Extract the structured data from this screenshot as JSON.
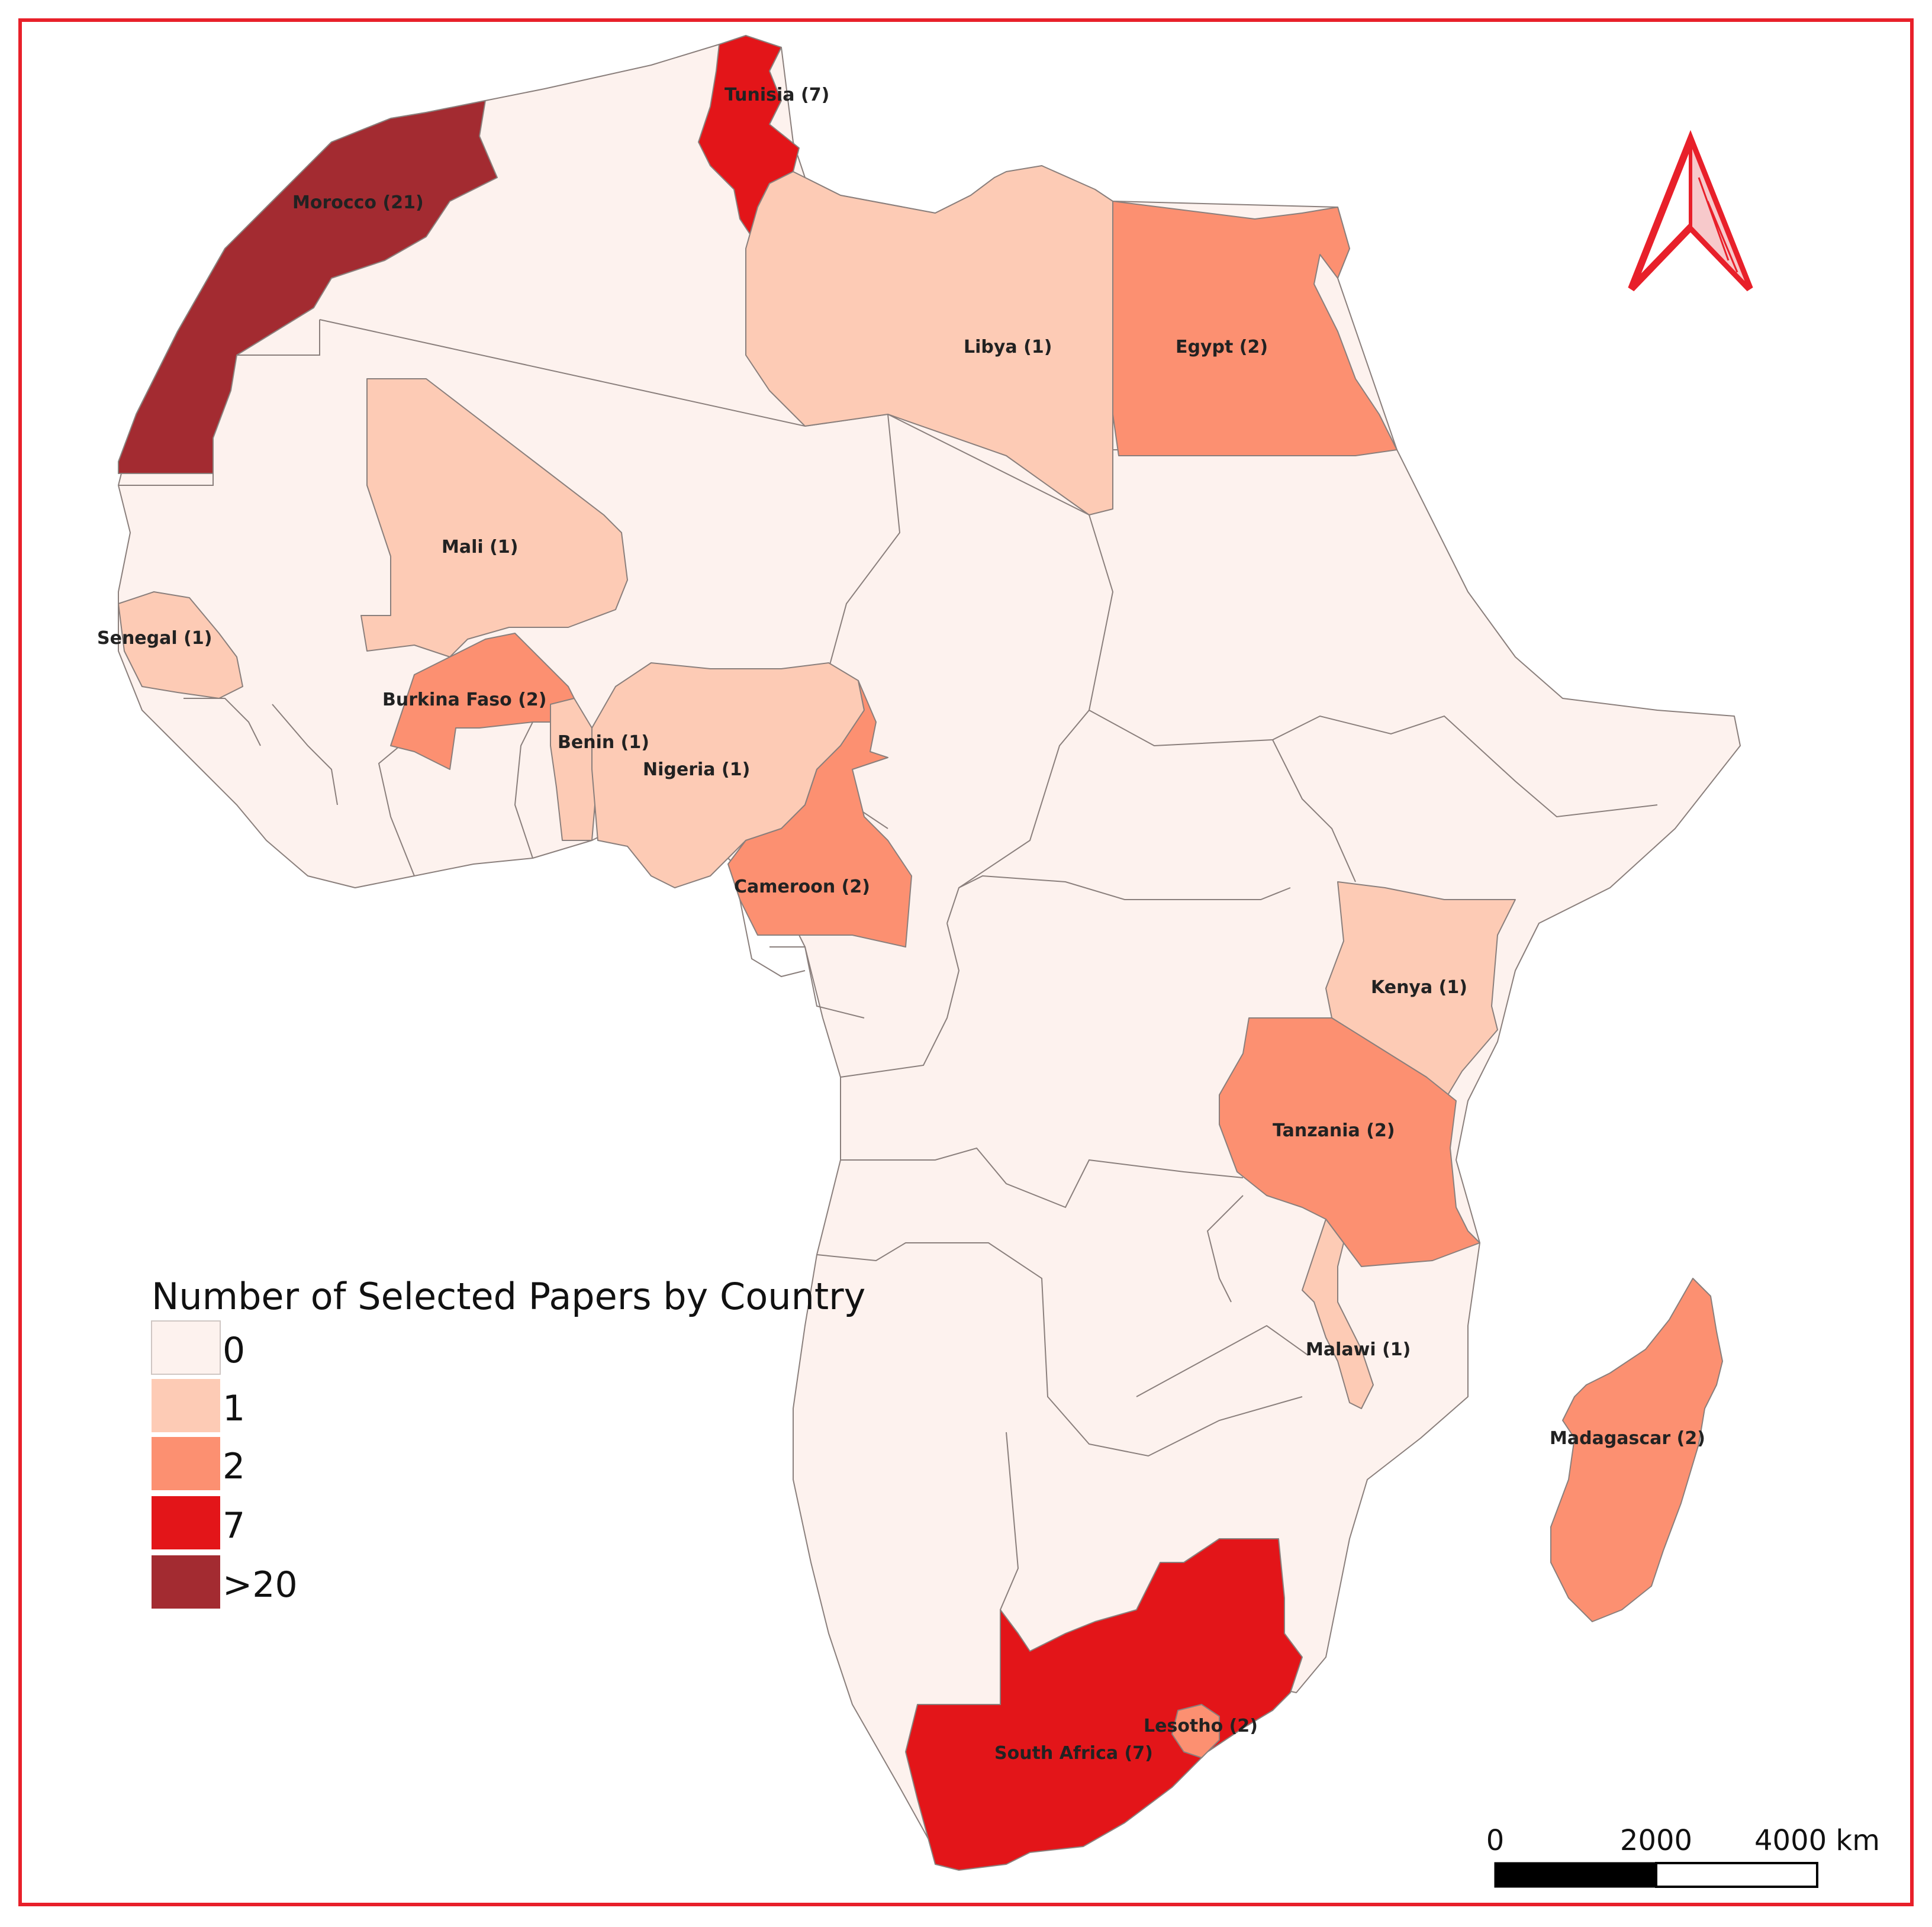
{
  "legend": {
    "title": "Number of Selected Papers by Country",
    "classes": [
      {
        "label": "0",
        "color": "#fdf2ee"
      },
      {
        "label": "1",
        "color": "#fdcbb5"
      },
      {
        "label": "2",
        "color": "#fc9071"
      },
      {
        "label": "7",
        "color": "#e31519"
      },
      {
        "label": ">20",
        "color": "#a32b31"
      }
    ]
  },
  "countries": [
    {
      "name": "Morocco",
      "label": "Morocco (21)",
      "papers": 21
    },
    {
      "name": "Tunisia",
      "label": "Tunisia (7)",
      "papers": 7
    },
    {
      "name": "Libya",
      "label": "Libya (1)",
      "papers": 1
    },
    {
      "name": "Egypt",
      "label": "Egypt (2)",
      "papers": 2
    },
    {
      "name": "Mali",
      "label": "Mali (1)",
      "papers": 1
    },
    {
      "name": "Senegal",
      "label": "Senegal (1)",
      "papers": 1
    },
    {
      "name": "Burkina Faso",
      "label": "Burkina Faso (2)",
      "papers": 2
    },
    {
      "name": "Benin",
      "label": "Benin (1)",
      "papers": 1
    },
    {
      "name": "Nigeria",
      "label": "Nigeria (1)",
      "papers": 1
    },
    {
      "name": "Cameroon",
      "label": "Cameroon (2)",
      "papers": 2
    },
    {
      "name": "Kenya",
      "label": "Kenya (1)",
      "papers": 1
    },
    {
      "name": "Tanzania",
      "label": "Tanzania (2)",
      "papers": 2
    },
    {
      "name": "Malawi",
      "label": "Malawi (1)",
      "papers": 1
    },
    {
      "name": "Madagascar",
      "label": "Madagascar (2)",
      "papers": 2
    },
    {
      "name": "Lesotho",
      "label": "Lesotho (2)",
      "papers": 2
    },
    {
      "name": "South Africa",
      "label": "South Africa (7)",
      "papers": 7
    }
  ],
  "scale_bar": {
    "ticks": [
      "0",
      "2000",
      "4000 km"
    ]
  },
  "colors": {
    "frame": "#e8202a",
    "north_arrow": "#e8202a",
    "borders": "#8a7f7c"
  },
  "icons": {
    "north_arrow": "north-arrow-icon"
  }
}
